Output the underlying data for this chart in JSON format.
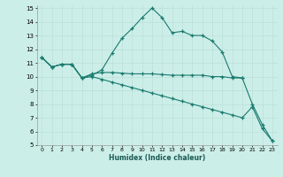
{
  "xlabel": "Humidex (Indice chaleur)",
  "xlim": [
    -0.5,
    23.5
  ],
  "ylim": [
    5,
    15.2
  ],
  "xtick_labels": [
    "0",
    "1",
    "2",
    "3",
    "4",
    "5",
    "6",
    "7",
    "8",
    "9",
    "10",
    "11",
    "12",
    "13",
    "14",
    "15",
    "16",
    "17",
    "18",
    "19",
    "20",
    "21",
    "22",
    "23"
  ],
  "yticks": [
    5,
    6,
    7,
    8,
    9,
    10,
    11,
    12,
    13,
    14,
    15
  ],
  "bg_color": "#cceee8",
  "line_color": "#1a7a6e",
  "series": [
    {
      "x": [
        0,
        1,
        2,
        3,
        4,
        5,
        6,
        7,
        8,
        9,
        10,
        11,
        12,
        13,
        14,
        15,
        16,
        17,
        18,
        19,
        20
      ],
      "y": [
        11.4,
        10.7,
        10.9,
        10.9,
        9.9,
        10.1,
        10.5,
        11.7,
        12.8,
        13.5,
        14.3,
        15.0,
        14.3,
        13.2,
        13.3,
        13.0,
        13.0,
        12.6,
        11.8,
        10.0,
        9.9
      ]
    },
    {
      "x": [
        0,
        1,
        2,
        3,
        4,
        5,
        6,
        7,
        8,
        9,
        10,
        11,
        12,
        13,
        14,
        15,
        16,
        17,
        18,
        19,
        20,
        21,
        22,
        23
      ],
      "y": [
        11.4,
        10.7,
        10.9,
        10.9,
        9.9,
        10.2,
        10.3,
        10.3,
        10.25,
        10.2,
        10.2,
        10.2,
        10.15,
        10.1,
        10.1,
        10.1,
        10.1,
        10.0,
        10.0,
        9.9,
        9.9,
        8.0,
        6.5,
        5.3
      ]
    },
    {
      "x": [
        0,
        1,
        2,
        3,
        4,
        5,
        6,
        7,
        8,
        9,
        10,
        11,
        12,
        13,
        14,
        15,
        16,
        17,
        18,
        19,
        20,
        21,
        22,
        23
      ],
      "y": [
        11.4,
        10.7,
        10.9,
        10.9,
        9.9,
        10.0,
        9.8,
        9.6,
        9.4,
        9.2,
        9.0,
        8.8,
        8.6,
        8.4,
        8.2,
        8.0,
        7.8,
        7.6,
        7.4,
        7.2,
        7.0,
        7.8,
        6.2,
        5.3
      ]
    }
  ]
}
